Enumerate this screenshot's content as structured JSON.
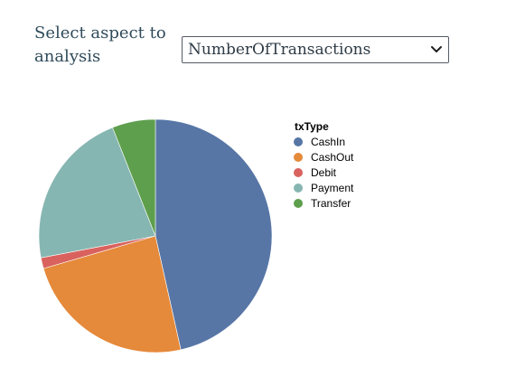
{
  "controls": {
    "aspect_label": "Select aspect to analysis",
    "aspect_select_value": "NumberOfTransactions"
  },
  "icons": {
    "dropdown": "chevron-down-icon"
  },
  "chart_data": {
    "type": "pie",
    "title": "",
    "legend_title": "txType",
    "legend_position": "right",
    "categories": [
      "CashIn",
      "CashOut",
      "Debit",
      "Payment",
      "Transfer"
    ],
    "values": [
      46.5,
      24.0,
      1.5,
      22.0,
      6.0
    ],
    "colors": [
      "#5776A6",
      "#E5893A",
      "#D9625E",
      "#86B6B2",
      "#5E9F4D"
    ]
  }
}
